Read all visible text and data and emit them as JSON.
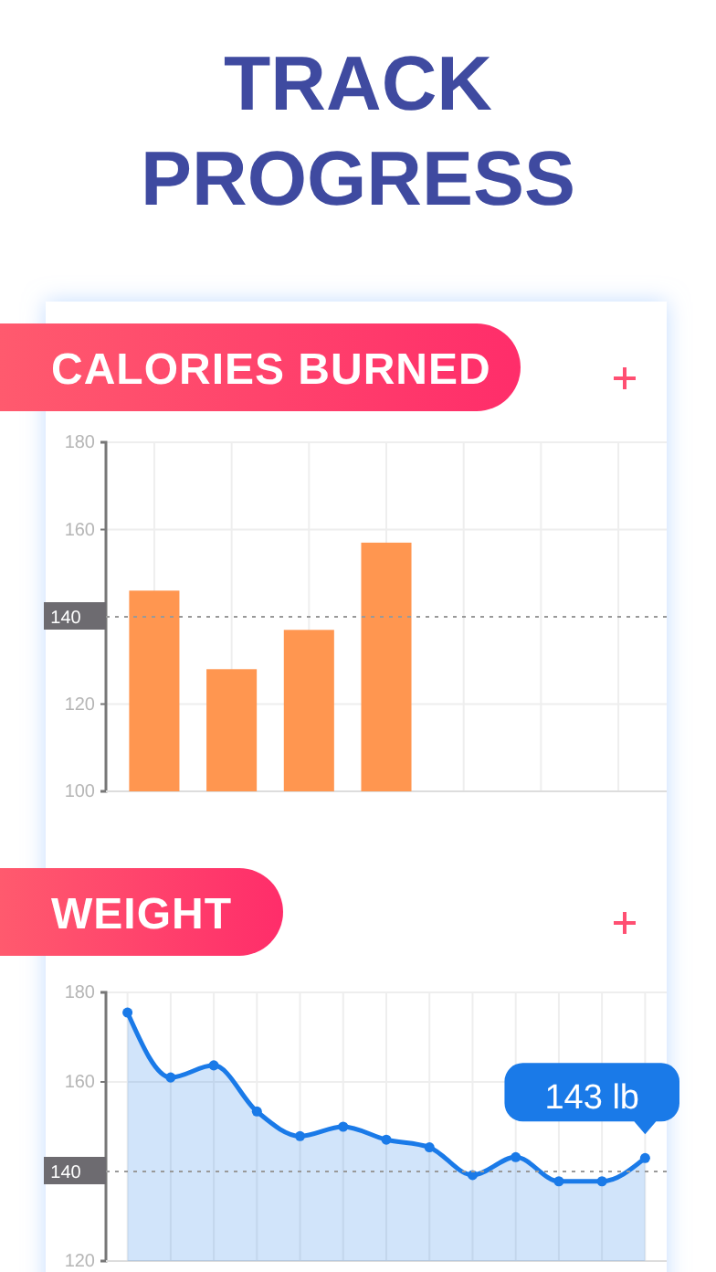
{
  "chart_data": [
    {
      "type": "bar",
      "title": "CALORIES BURNED",
      "annotations": [
        "TRACK PROGRESS"
      ],
      "categories": [
        null,
        null,
        null,
        null,
        null,
        null,
        null
      ],
      "values": [
        146,
        128,
        137,
        157,
        null,
        null,
        null
      ],
      "color": "#ff9650",
      "ylim": [
        100,
        180
      ],
      "yticks": [
        100,
        120,
        160,
        180
      ],
      "grid": true,
      "tick_labels": "y",
      "ref_lines": [
        {
          "axis": "y",
          "value": 140,
          "label": "140",
          "line_style": "dotted"
        }
      ]
    },
    {
      "type": "area",
      "title": "WEIGHT",
      "categories": [
        null,
        null,
        null,
        null,
        null,
        null,
        null,
        null,
        null,
        null,
        null,
        null,
        null
      ],
      "series": [
        {
          "color": "#1a7ae8",
          "values": [
            175.5,
            161,
            163.7,
            153.4,
            147.9,
            150,
            147.1,
            145.4,
            139.2,
            143.2,
            137.8,
            137.8,
            143
          ],
          "value_labels": [
            null,
            null,
            null,
            null,
            null,
            null,
            null,
            null,
            null,
            null,
            null,
            null,
            "143 lb"
          ]
        }
      ],
      "ylim": [
        120,
        180
      ],
      "yticks": [
        120,
        160,
        180
      ],
      "grid": true,
      "marker": "circle",
      "tick_labels": "y",
      "ref_lines": [
        {
          "axis": "y",
          "value": 140,
          "label": "140",
          "line_style": "dotted"
        }
      ]
    }
  ]
}
